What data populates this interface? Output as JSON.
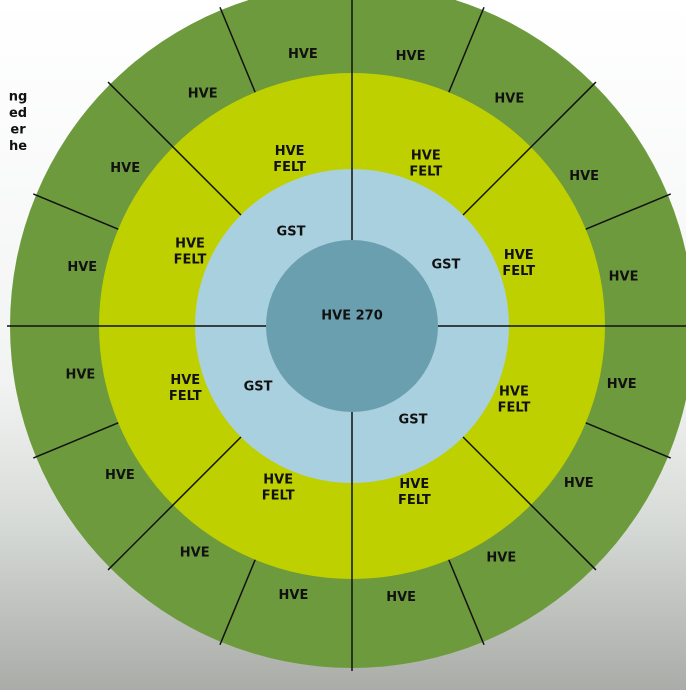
{
  "center": {
    "label": "HVE 270"
  },
  "inner": [
    "GST",
    "GST",
    "GST",
    "GST"
  ],
  "middle": [
    {
      "line1": "HVE",
      "line2": "FELT"
    },
    {
      "line1": "HVE",
      "line2": "FELT"
    },
    {
      "line1": "HVE",
      "line2": "FELT"
    },
    {
      "line1": "HVE",
      "line2": "FELT"
    },
    {
      "line1": "HVE",
      "line2": "FELT"
    },
    {
      "line1": "HVE",
      "line2": "FELT"
    },
    {
      "line1": "HVE",
      "line2": "FELT"
    },
    {
      "line1": "HVE",
      "line2": "FELT"
    }
  ],
  "outer": [
    "HVE",
    "HVE",
    "HVE",
    "HVE",
    "HVE",
    "HVE",
    "HVE",
    "HVE",
    "HVE",
    "HVE",
    "HVE",
    "HVE",
    "HVE",
    "HVE",
    "HVE",
    "HVE"
  ],
  "side_text": [
    "ng",
    "ed",
    "er",
    "he"
  ]
}
